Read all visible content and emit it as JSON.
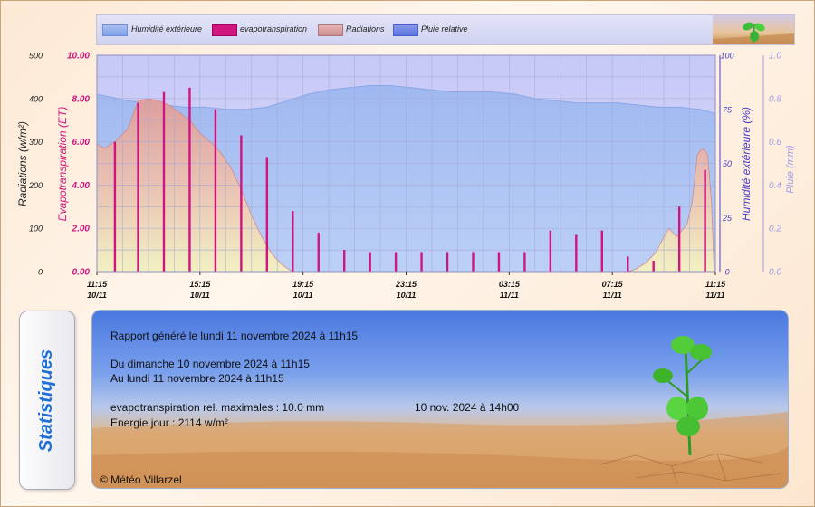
{
  "legend": {
    "items": [
      {
        "label": "Humidité extérieure",
        "color": "#7fa0e8"
      },
      {
        "label": "evapotranspiration",
        "color": "#d0157e"
      },
      {
        "label": "Radiations",
        "color": "#c98f8f"
      },
      {
        "label": "Pluie relative",
        "color": "#5b73dc"
      }
    ]
  },
  "chart_data": {
    "type": "area",
    "x_ticks": [
      {
        "time": "11:15",
        "date": "10/11"
      },
      {
        "time": "15:15",
        "date": "10/11"
      },
      {
        "time": "19:15",
        "date": "10/11"
      },
      {
        "time": "23:15",
        "date": "10/11"
      },
      {
        "time": "03:15",
        "date": "11/11"
      },
      {
        "time": "07:15",
        "date": "11/11"
      },
      {
        "time": "11:15",
        "date": "11/11"
      }
    ],
    "axes": {
      "radiation": {
        "label": "Radiations (w/m²)",
        "ticks": [
          "0",
          "100",
          "200",
          "300",
          "400",
          "500"
        ],
        "range": [
          0,
          500
        ],
        "color": "#222222"
      },
      "et": {
        "label": "Evapotranspiration (ET)",
        "ticks": [
          "0.00",
          "2.00",
          "4.00",
          "6.00",
          "8.00",
          "10.00"
        ],
        "range": [
          0,
          10
        ],
        "color": "#d0157e"
      },
      "humidity": {
        "label": "Humidité extérieure (%)",
        "ticks": [
          "0",
          "25",
          "50",
          "75",
          "100"
        ],
        "range": [
          0,
          100
        ],
        "color": "#4a40c8"
      },
      "rain": {
        "label": "Pluie (mm)",
        "ticks": [
          "0.0",
          "0.2",
          "0.4",
          "0.6",
          "0.8",
          "1.0"
        ],
        "range": [
          0,
          1
        ],
        "color": "#9d9be6"
      }
    },
    "hours_range": [
      0,
      24
    ],
    "radiation_series": {
      "name": "Radiations",
      "hours": [
        0,
        0.3,
        0.7,
        1.2,
        1.6,
        2.0,
        2.4,
        2.8,
        3.2,
        3.6,
        4.0,
        4.4,
        4.8,
        5.2,
        5.6,
        6.0,
        6.4,
        6.8,
        7.2,
        7.5,
        7.7,
        20.6,
        20.9,
        21.3,
        21.7,
        22.0,
        22.2,
        22.5,
        22.7,
        22.9,
        23.1,
        23.3,
        23.5,
        23.7,
        23.85,
        23.95
      ],
      "values": [
        295,
        285,
        300,
        330,
        395,
        400,
        395,
        385,
        368,
        350,
        320,
        300,
        275,
        240,
        190,
        130,
        80,
        40,
        15,
        3,
        0,
        0,
        5,
        20,
        45,
        80,
        100,
        80,
        95,
        110,
        160,
        270,
        285,
        270,
        160,
        0
      ]
    },
    "humidity_series": {
      "name": "Humidité extérieure",
      "hours": [
        0,
        0.4,
        0.8,
        1.2,
        1.8,
        2.6,
        3.4,
        4.2,
        5.0,
        5.8,
        6.6,
        7.4,
        8.2,
        9.0,
        9.8,
        10.6,
        11.4,
        12.2,
        13.0,
        13.8,
        14.6,
        15.4,
        16.2,
        17.0,
        17.8,
        18.6,
        19.4,
        20.2,
        21.0,
        21.8,
        22.6,
        23.4,
        24.0
      ],
      "values": [
        82,
        81,
        80,
        79,
        78,
        77,
        76,
        76,
        75,
        75,
        76,
        79,
        82,
        84,
        85,
        86,
        86,
        85,
        84,
        83,
        83,
        83,
        82,
        80,
        79,
        78,
        78,
        78,
        77,
        76,
        76,
        75,
        73
      ]
    },
    "et_series": {
      "name": "evapotranspiration",
      "hours": [
        0.7,
        1.6,
        2.6,
        3.6,
        4.6,
        5.6,
        6.6,
        7.6,
        8.6,
        9.6,
        10.6,
        11.6,
        12.6,
        13.6,
        14.6,
        15.6,
        16.6,
        17.6,
        18.6,
        19.6,
        20.6,
        21.6,
        22.6,
        23.6
      ],
      "values": [
        6.0,
        7.8,
        8.3,
        8.5,
        7.5,
        6.3,
        5.3,
        2.8,
        1.8,
        1.0,
        0.9,
        0.9,
        0.9,
        0.9,
        0.9,
        0.9,
        0.9,
        1.9,
        1.7,
        1.9,
        0.7,
        0.5,
        3.0,
        4.7
      ]
    },
    "rain_series": {
      "name": "Pluie relative",
      "values": []
    },
    "grid": true
  },
  "stats": {
    "title": "Statistiques",
    "generated": "Rapport généré le lundi 11 novembre 2024 à 11h15",
    "from": "Du dimanche 10 novembre 2024 à 11h15",
    "to": "Au lundi 11 novembre 2024 à 11h15",
    "et_max_label": "evapotranspiration rel. maximales : 10.0 mm",
    "et_max_date": "10 nov. 2024 à 14h00",
    "energy": "Energie jour : 2114 w/m²",
    "copyright": "© Météo Villarzel"
  }
}
